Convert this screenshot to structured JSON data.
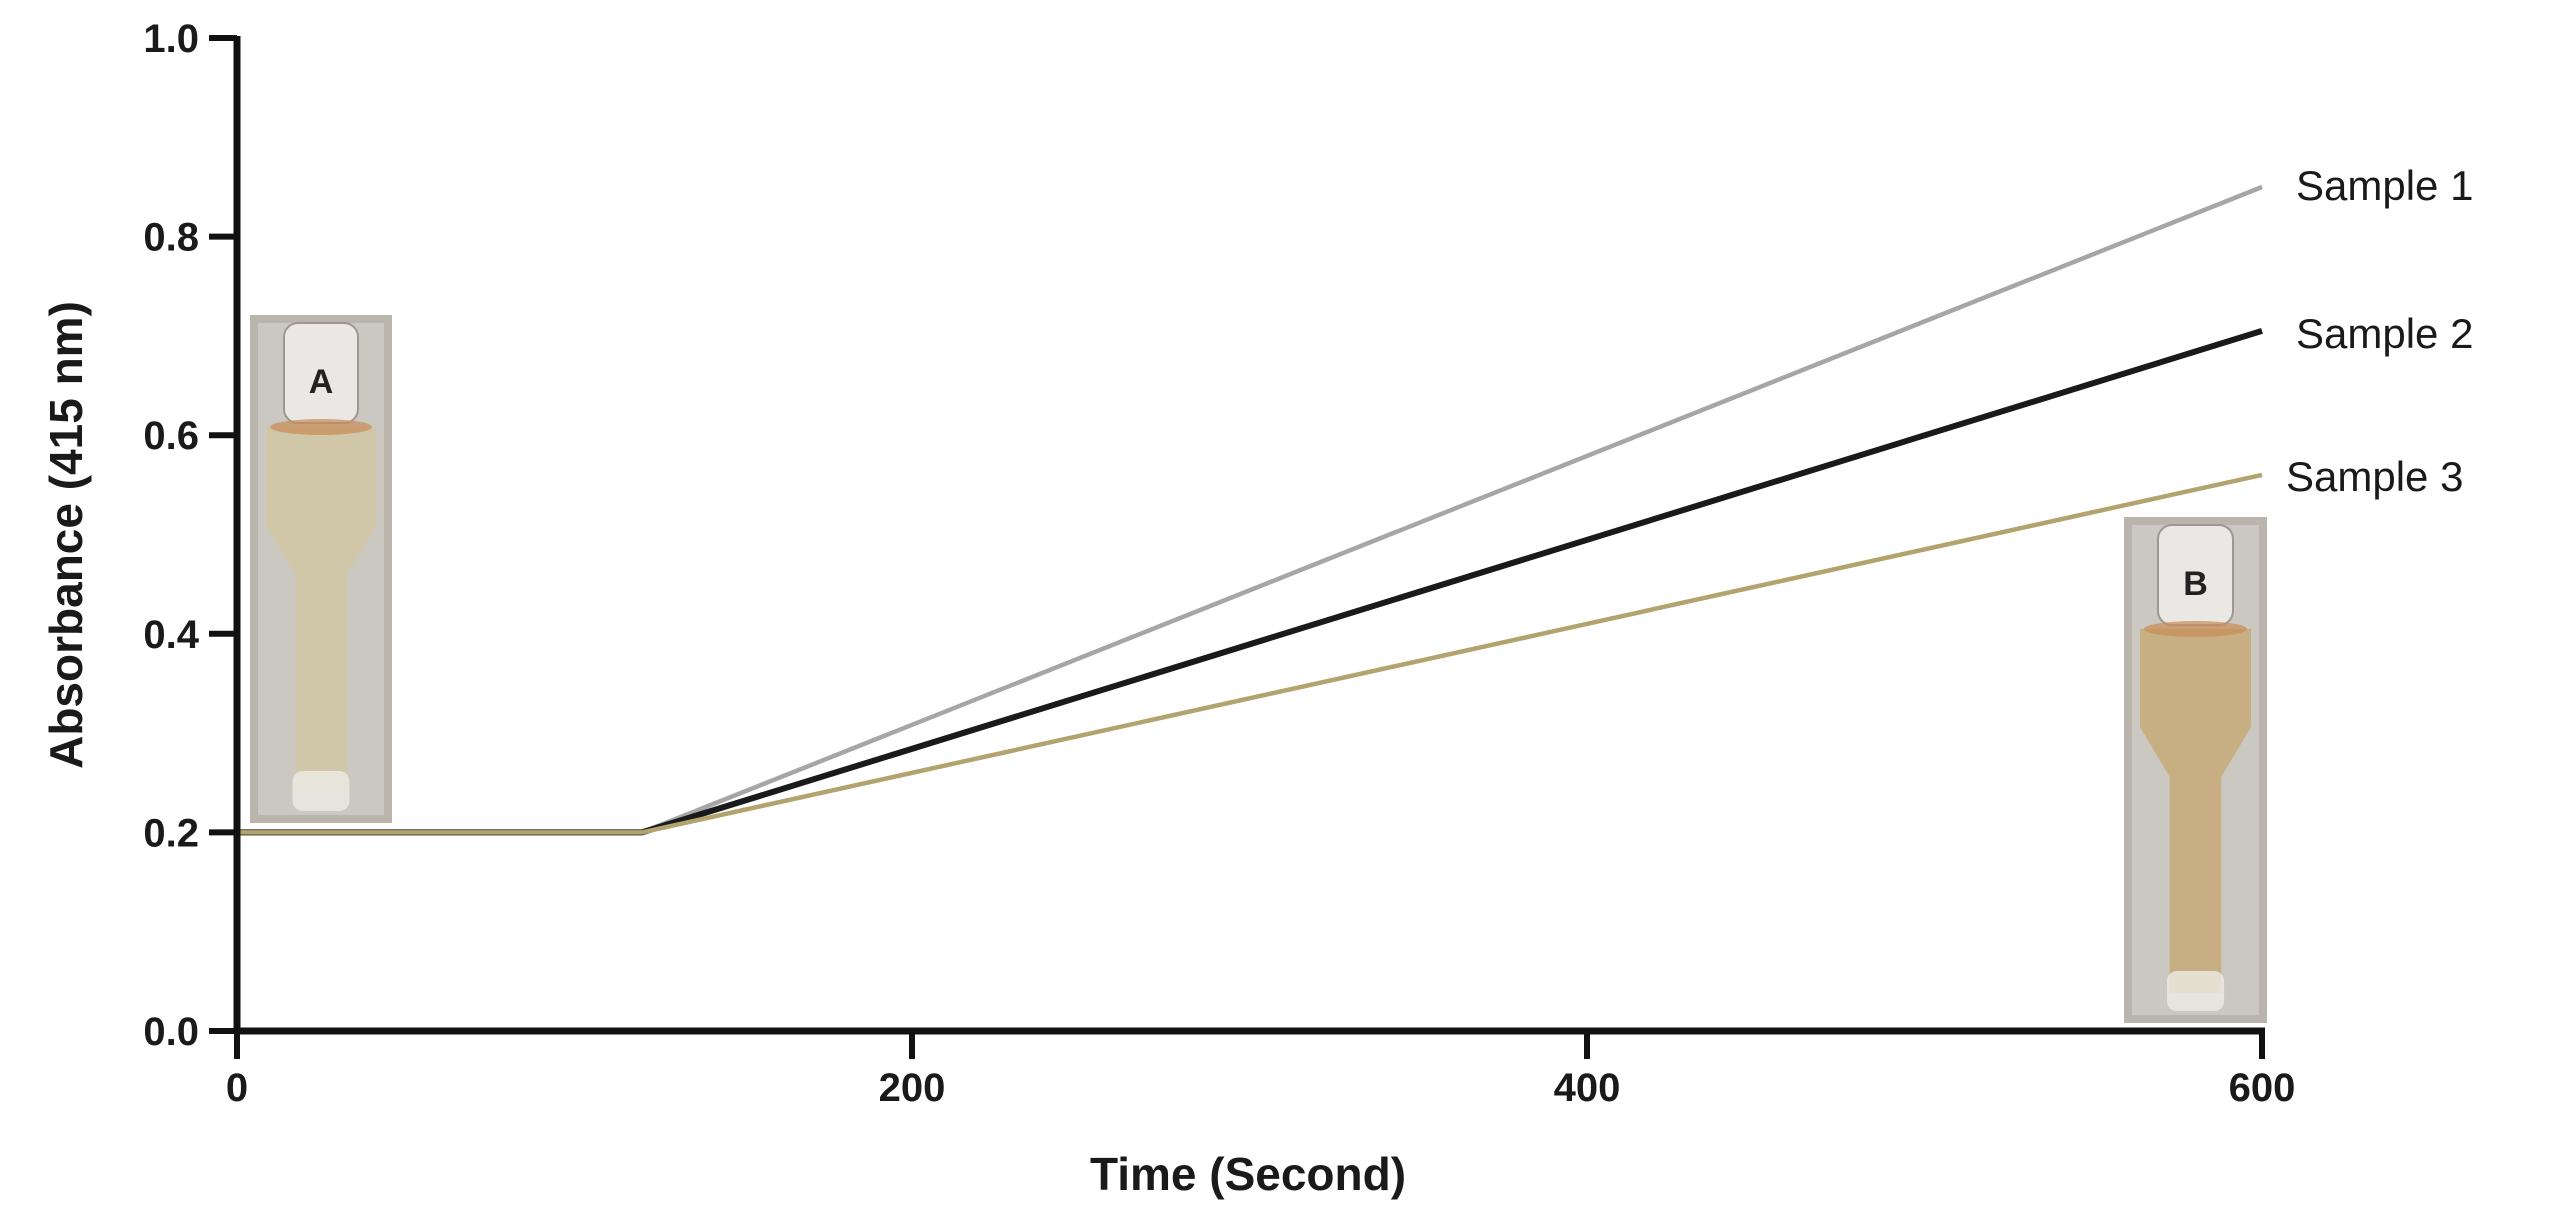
{
  "chart_data": {
    "type": "line",
    "title": "",
    "xlabel": "Time (Second)",
    "ylabel": "Absorbance (415 nm)",
    "xlim": [
      0,
      600
    ],
    "ylim": [
      0.0,
      1.0
    ],
    "xticks": [
      0,
      200,
      400,
      600
    ],
    "xtick_labels": [
      "0",
      "200",
      "400",
      "600"
    ],
    "yticks": [
      0.0,
      0.2,
      0.4,
      0.6,
      0.8,
      1.0
    ],
    "ytick_labels": [
      "0.0",
      "0.2",
      "0.4",
      "0.6",
      "0.8",
      "1.0"
    ],
    "grid": false,
    "legend": "labels at line ends (right)",
    "series": [
      {
        "name": "Sample 1",
        "color": "#a6a6a6",
        "x": [
          0,
          120,
          600
        ],
        "y": [
          0.2,
          0.2,
          0.85
        ]
      },
      {
        "name": "Sample 2",
        "color": "#1a1a1a",
        "x": [
          0,
          120,
          600
        ],
        "y": [
          0.2,
          0.2,
          0.705
        ]
      },
      {
        "name": "Sample 3",
        "color": "#b3a36e",
        "x": [
          0,
          120,
          600
        ],
        "y": [
          0.2,
          0.2,
          0.56
        ]
      }
    ],
    "insets": [
      {
        "label": "A",
        "description": "cuvette photo",
        "liquid_color": "#cfc6a4"
      },
      {
        "label": "B",
        "description": "cuvette photo",
        "liquid_color": "#c7ac7c"
      }
    ]
  }
}
